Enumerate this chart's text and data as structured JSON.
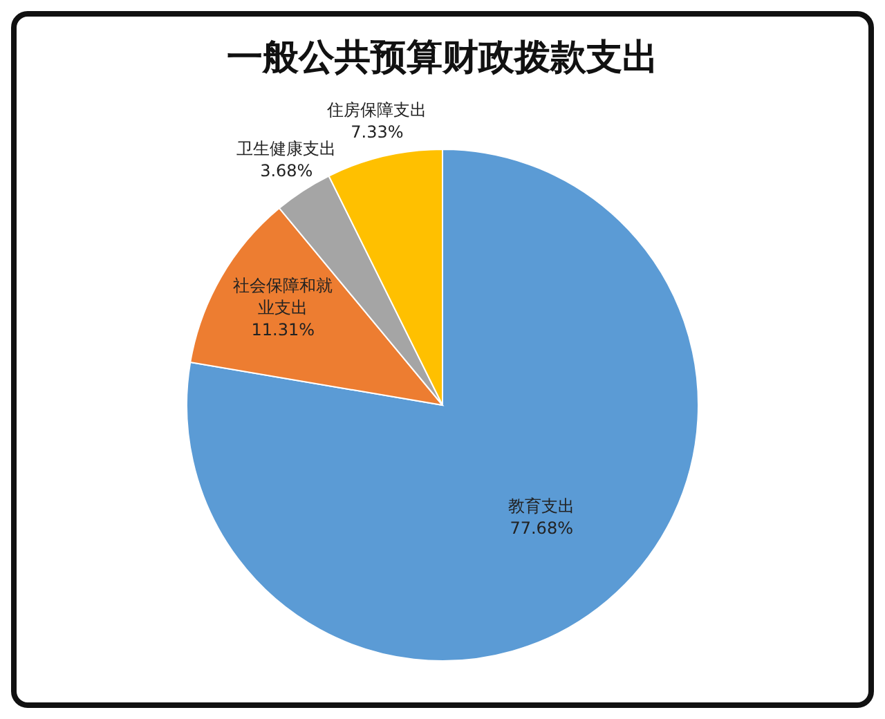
{
  "chart_data": {
    "type": "pie",
    "title": "一般公共预算财政拨款支出",
    "categories": [
      "教育支出",
      "社会保障和就业支出",
      "卫生健康支出",
      "住房保障支出"
    ],
    "values": [
      77.68,
      11.31,
      3.68,
      7.33
    ],
    "colors": [
      "#5b9bd5",
      "#ed7d31",
      "#a5a5a5",
      "#ffc000"
    ],
    "value_labels": [
      "77.68%",
      "11.31%",
      "3.68%",
      "7.33%"
    ]
  }
}
